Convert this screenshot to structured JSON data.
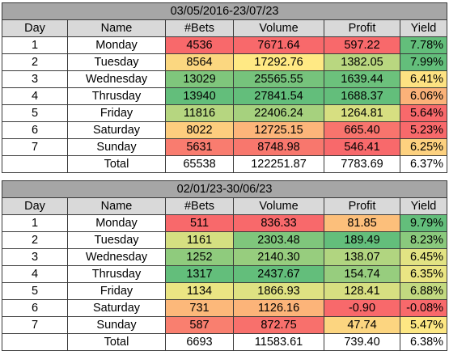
{
  "headers": [
    "Day",
    "Name",
    "#Bets",
    "Volume",
    "Profit",
    "Yield"
  ],
  "colors": {
    "red": "#f8696b",
    "orange_red": "#fa9473",
    "orange": "#fcbf7b",
    "yellow_orange": "#fdd17f",
    "yellow": "#ffeb84",
    "yellow_green": "#d7df81",
    "light_green": "#b1d580",
    "green": "#8ac97d",
    "deep_green": "#63be7b",
    "header_gray": "#d9d9d9",
    "title_gray": "#a6a6a6"
  },
  "tables": [
    {
      "period": "03/05/2016-23/07/23",
      "rows": [
        {
          "day": "1",
          "name": "Monday",
          "bets": "4536",
          "volume": "7671.64",
          "profit": "597.22",
          "yield": "7.78%",
          "bets_color": "#f8696b",
          "volume_color": "#f8696b",
          "profit_color": "#f8696b",
          "yield_color": "#63be7b"
        },
        {
          "day": "2",
          "name": "Tuesday",
          "bets": "8564",
          "volume": "17292.76",
          "profit": "1382.05",
          "yield": "7.99%",
          "bets_color": "#fbd780",
          "volume_color": "#ffe984",
          "profit_color": "#b9d780",
          "yield_color": "#63be7b"
        },
        {
          "day": "3",
          "name": "Wednesday",
          "bets": "13029",
          "volume": "25565.55",
          "profit": "1639.44",
          "yield": "6.41%",
          "bets_color": "#7fc67c",
          "volume_color": "#76c37c",
          "profit_color": "#6cc17c",
          "yield_color": "#fde282"
        },
        {
          "day": "4",
          "name": "Thrusday",
          "bets": "13940",
          "volume": "27841.54",
          "profit": "1688.37",
          "yield": "6.06%",
          "bets_color": "#63be7b",
          "volume_color": "#63be7b",
          "profit_color": "#63be7b",
          "yield_color": "#fbb279"
        },
        {
          "day": "5",
          "name": "Friday",
          "bets": "11816",
          "volume": "22406.24",
          "profit": "1264.81",
          "yield": "5.64%",
          "bets_color": "#b6d680",
          "volume_color": "#a6d17e",
          "profit_color": "#d7df81",
          "yield_color": "#f8696b"
        },
        {
          "day": "6",
          "name": "Saturday",
          "bets": "8022",
          "volume": "12725.15",
          "profit": "665.40",
          "yield": "5.23%",
          "bets_color": "#fdcd7e",
          "volume_color": "#fcb57a",
          "profit_color": "#f8746d",
          "yield_color": "#f8696b"
        },
        {
          "day": "7",
          "name": "Sunday",
          "bets": "5631",
          "volume": "8748.98",
          "profit": "546.41",
          "yield": "6.25%",
          "bets_color": "#f97c6f",
          "volume_color": "#f8776d",
          "profit_color": "#f8696b",
          "yield_color": "#fdd17f"
        }
      ],
      "total": {
        "label": "Total",
        "bets": "65538",
        "volume": "122251.87",
        "profit": "7783.69",
        "yield": "6.37%"
      }
    },
    {
      "period": "02/01/23-30/06/23",
      "rows": [
        {
          "day": "1",
          "name": "Monday",
          "bets": "511",
          "volume": "836.33",
          "profit": "81.85",
          "yield": "9.79%",
          "bets_color": "#f8696b",
          "volume_color": "#f8696b",
          "profit_color": "#fcbf7b",
          "yield_color": "#63be7b"
        },
        {
          "day": "2",
          "name": "Tuesday",
          "bets": "1161",
          "volume": "2303.48",
          "profit": "189.49",
          "yield": "8.23%",
          "bets_color": "#d5df81",
          "volume_color": "#7fc67c",
          "profit_color": "#63be7b",
          "yield_color": "#8ac97d"
        },
        {
          "day": "3",
          "name": "Wednesday",
          "bets": "1252",
          "volume": "2140.30",
          "profit": "138.07",
          "yield": "6.45%",
          "bets_color": "#8fcb7d",
          "volume_color": "#97cd7e",
          "profit_color": "#b1d580",
          "yield_color": "#e2e383"
        },
        {
          "day": "4",
          "name": "Thrusday",
          "bets": "1317",
          "volume": "2437.67",
          "profit": "154.74",
          "yield": "6.35%",
          "bets_color": "#63be7b",
          "volume_color": "#63be7b",
          "profit_color": "#97cd7e",
          "yield_color": "#eae583"
        },
        {
          "day": "5",
          "name": "Friday",
          "bets": "1134",
          "volume": "1866.93",
          "profit": "128.41",
          "yield": "6.88%",
          "bets_color": "#ebe583",
          "volume_color": "#dfe282",
          "profit_color": "#d7df81",
          "yield_color": "#c2d980"
        },
        {
          "day": "6",
          "name": "Saturday",
          "bets": "731",
          "volume": "1126.16",
          "profit": "-0.90",
          "yield": "-0.08%",
          "bets_color": "#fcb87a",
          "volume_color": "#fcb479",
          "profit_color": "#f8696b",
          "yield_color": "#f8696b"
        },
        {
          "day": "7",
          "name": "Sunday",
          "bets": "587",
          "volume": "872.75",
          "profit": "47.74",
          "yield": "5.47%",
          "bets_color": "#f97f6f",
          "volume_color": "#f8706c",
          "profit_color": "#fcd580",
          "yield_color": "#fde783"
        }
      ],
      "total": {
        "label": "Total",
        "bets": "6693",
        "volume": "11583.61",
        "profit": "739.40",
        "yield": "6.38%"
      }
    }
  ]
}
